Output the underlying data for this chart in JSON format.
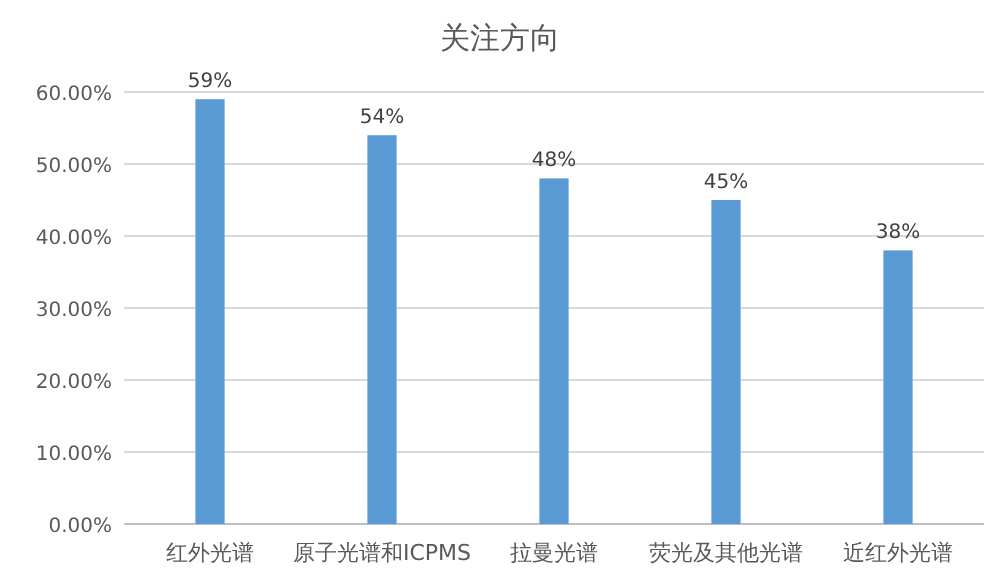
{
  "chart_data": {
    "type": "bar",
    "title": "关注方向",
    "categories": [
      "红外光谱",
      "原子光谱和ICPMS",
      "拉曼光谱",
      "荧光及其他光谱",
      "近红外光谱"
    ],
    "values": [
      59,
      54,
      48,
      45,
      38
    ],
    "value_labels": [
      "59%",
      "54%",
      "48%",
      "45%",
      "38%"
    ],
    "color": "#5b9bd5",
    "ylim": [
      0,
      60
    ],
    "yticks": [
      {
        "value": 0,
        "label": "0.00%"
      },
      {
        "value": 10,
        "label": "10.00%"
      },
      {
        "value": 20,
        "label": "20.00%"
      },
      {
        "value": 30,
        "label": "30.00%"
      },
      {
        "value": 40,
        "label": "40.00%"
      },
      {
        "value": 50,
        "label": "50.00%"
      },
      {
        "value": 60,
        "label": "60.00%"
      }
    ],
    "grid": "y"
  }
}
